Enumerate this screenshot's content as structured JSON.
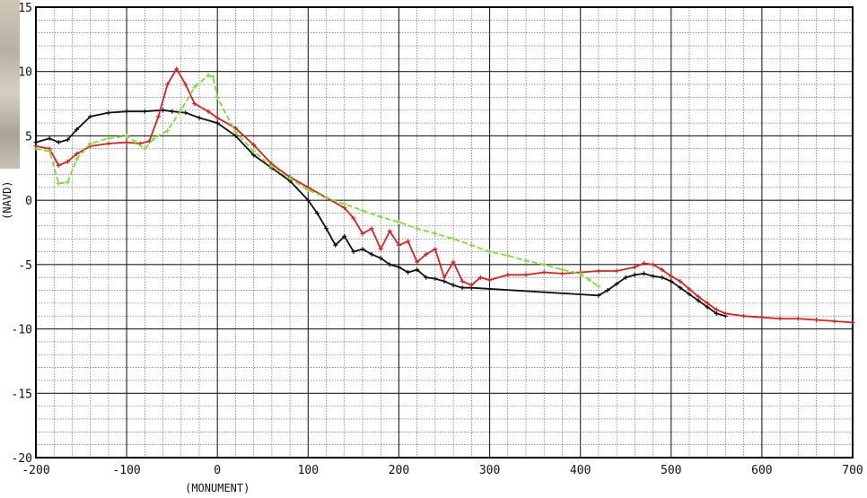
{
  "chart_data": {
    "type": "line",
    "title": "",
    "xlabel": "(MONUMENT)",
    "ylabel": "(NAVD)",
    "xlim": [
      -200,
      700
    ],
    "ylim": [
      -20,
      15
    ],
    "x_ticks": [
      -200,
      -100,
      0,
      100,
      200,
      300,
      400,
      500,
      600,
      700
    ],
    "y_ticks": [
      -20,
      -15,
      -10,
      -5,
      0,
      5,
      10,
      15
    ],
    "x_tick_labels": [
      "-200",
      "-100",
      "0",
      "100",
      "200",
      "300",
      "400",
      "500",
      "600",
      "700"
    ],
    "y_tick_labels": [
      "-20",
      "-15",
      "-10",
      "-5",
      "0",
      "5",
      "10",
      "15"
    ],
    "grid": true,
    "minor_grid_divisions": 5,
    "legend": "none",
    "series": [
      {
        "color": "#111111",
        "style": "solid-with-markers",
        "x": [
          -200,
          -185,
          -175,
          -165,
          -155,
          -140,
          -120,
          -100,
          -80,
          -60,
          -50,
          -35,
          -20,
          0,
          20,
          40,
          60,
          80,
          100,
          110,
          120,
          130,
          140,
          150,
          160,
          170,
          180,
          190,
          200,
          210,
          220,
          230,
          240,
          250,
          260,
          270,
          280,
          420,
          430,
          440,
          450,
          460,
          470,
          480,
          490,
          500,
          510,
          520,
          530,
          540,
          550,
          560
        ],
        "y": [
          4.5,
          4.8,
          4.5,
          4.7,
          5.5,
          6.5,
          6.8,
          6.9,
          6.9,
          7.0,
          6.9,
          6.8,
          6.4,
          6.0,
          5.0,
          3.5,
          2.5,
          1.5,
          0.0,
          -1.0,
          -2.2,
          -3.5,
          -2.8,
          -4.0,
          -3.8,
          -4.2,
          -4.5,
          -5.0,
          -5.2,
          -5.6,
          -5.4,
          -6.0,
          -6.1,
          -6.3,
          -6.6,
          -6.8,
          -6.8,
          -7.4,
          -7.0,
          -6.5,
          -6.0,
          -5.8,
          -5.7,
          -5.9,
          -6.0,
          -6.3,
          -6.8,
          -7.3,
          -7.8,
          -8.3,
          -8.8,
          -9.0
        ]
      },
      {
        "color": "#e02020",
        "style": "solid-with-markers",
        "x": [
          -200,
          -185,
          -175,
          -165,
          -155,
          -140,
          -120,
          -100,
          -85,
          -75,
          -65,
          -55,
          -45,
          -35,
          -25,
          -10,
          0,
          20,
          40,
          60,
          80,
          100,
          120,
          140,
          150,
          160,
          170,
          180,
          190,
          200,
          210,
          220,
          230,
          240,
          250,
          260,
          270,
          280,
          290,
          300,
          320,
          340,
          360,
          380,
          400,
          420,
          440,
          460,
          470,
          480,
          490,
          500,
          510,
          520,
          530,
          540,
          550,
          560,
          580,
          600,
          620,
          640,
          660,
          680,
          700
        ],
        "y": [
          4.2,
          4.0,
          2.7,
          3.0,
          3.6,
          4.2,
          4.4,
          4.5,
          4.4,
          4.6,
          6.5,
          9.0,
          10.2,
          9.0,
          7.5,
          6.9,
          6.4,
          5.6,
          4.3,
          2.8,
          1.8,
          1.0,
          0.2,
          -0.6,
          -1.4,
          -2.6,
          -2.2,
          -3.8,
          -2.4,
          -3.5,
          -3.2,
          -4.8,
          -4.2,
          -3.8,
          -6.0,
          -4.8,
          -6.3,
          -6.6,
          -6.0,
          -6.2,
          -5.8,
          -5.8,
          -5.6,
          -5.7,
          -5.6,
          -5.5,
          -5.5,
          -5.2,
          -4.9,
          -5.0,
          -5.4,
          -5.9,
          -6.3,
          -6.9,
          -7.5,
          -8.0,
          -8.5,
          -8.8,
          -9.0,
          -9.1,
          -9.2,
          -9.2,
          -9.3,
          -9.4,
          -9.5
        ]
      },
      {
        "color": "#7ddc3a",
        "style": "dashed-with-markers",
        "x": [
          -200,
          -185,
          -175,
          -165,
          -155,
          -140,
          -120,
          -100,
          -90,
          -80,
          -70,
          -55,
          -40,
          -25,
          -10,
          -5,
          0,
          20,
          40,
          60,
          80,
          100,
          120,
          140,
          160,
          180,
          200,
          220,
          240,
          260,
          280,
          300,
          320,
          340,
          360,
          380,
          400,
          410,
          420
        ],
        "y": [
          4.0,
          3.8,
          1.3,
          1.4,
          3.2,
          4.4,
          4.8,
          5.0,
          4.5,
          4.0,
          4.8,
          5.4,
          7.0,
          8.8,
          9.7,
          9.6,
          8.0,
          5.3,
          3.8,
          2.6,
          1.7,
          0.8,
          0.2,
          -0.3,
          -0.8,
          -1.3,
          -1.7,
          -2.2,
          -2.6,
          -3.0,
          -3.5,
          -4.0,
          -4.3,
          -4.7,
          -5.0,
          -5.4,
          -5.7,
          -6.2,
          -6.7
        ]
      }
    ]
  }
}
